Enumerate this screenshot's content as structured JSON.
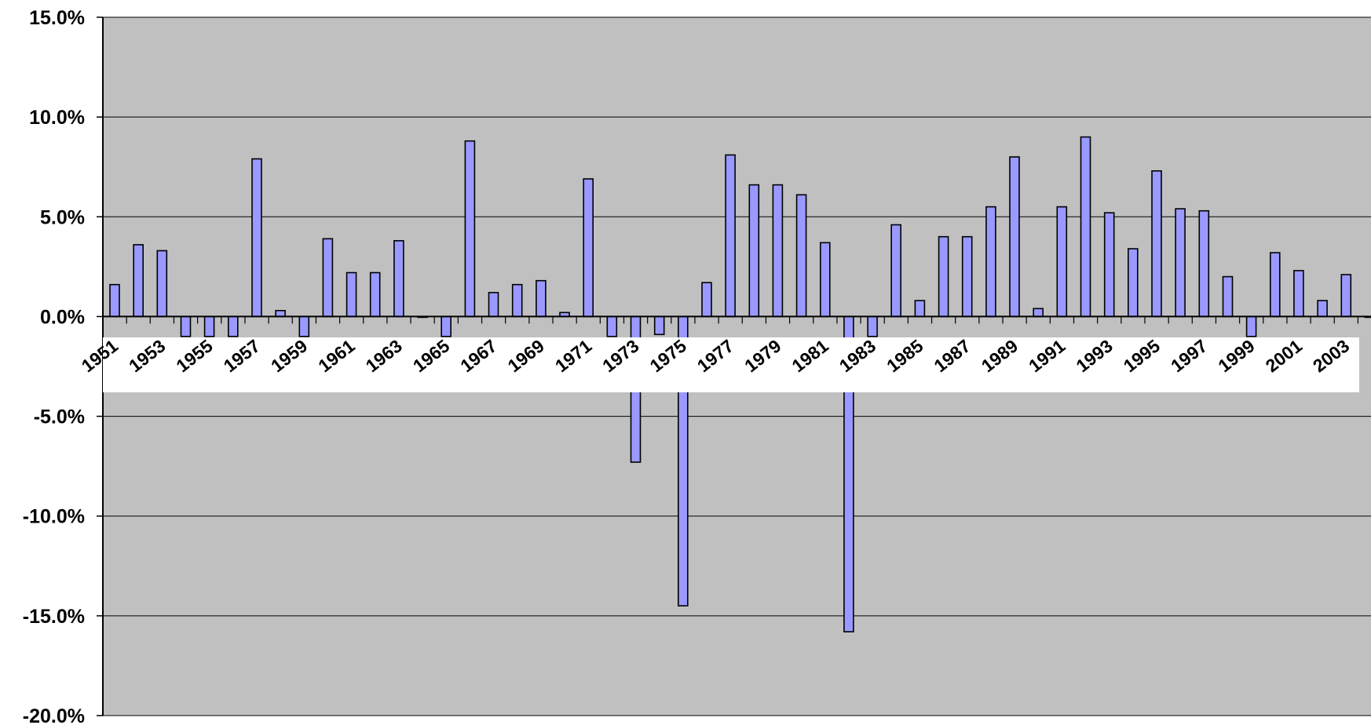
{
  "chart_data": {
    "type": "bar",
    "title": "",
    "xlabel": "",
    "ylabel": "",
    "ylim": [
      -0.2,
      0.15
    ],
    "y_ticks": [
      0.15,
      0.1,
      0.05,
      0.0,
      -0.05,
      -0.1,
      -0.15,
      -0.2
    ],
    "y_tick_labels": [
      "15.0%",
      "10.0%",
      "5.0%",
      "0.0%",
      "-5.0%",
      "-10.0%",
      "-15.0%",
      "-20.0%"
    ],
    "x_tick_labels": [
      "1951",
      "1953",
      "1955",
      "1957",
      "1959",
      "1961",
      "1963",
      "1965",
      "1967",
      "1969",
      "1971",
      "1973",
      "1975",
      "1977",
      "1979",
      "1981",
      "1983",
      "1985",
      "1987",
      "1989",
      "1991",
      "1993",
      "1995",
      "1997",
      "1999",
      "2001",
      "2003"
    ],
    "grid": true,
    "categories": [
      "1951",
      "1952",
      "1953",
      "1954",
      "1955",
      "1956",
      "1957",
      "1958",
      "1959",
      "1960",
      "1961",
      "1962",
      "1963",
      "1964",
      "1965",
      "1966",
      "1967",
      "1968",
      "1969",
      "1970",
      "1971",
      "1972",
      "1973",
      "1974",
      "1975",
      "1976",
      "1977",
      "1978",
      "1979",
      "1980",
      "1981",
      "1982",
      "1983",
      "1984",
      "1985",
      "1986",
      "1987",
      "1988",
      "1989",
      "1990",
      "1991",
      "1992",
      "1993",
      "1994",
      "1995",
      "1996",
      "1997",
      "1998",
      "1999",
      "2000",
      "2001",
      "2002",
      "2003",
      "2004"
    ],
    "values": [
      0.016,
      0.036,
      0.033,
      -0.01,
      -0.01,
      -0.01,
      0.079,
      0.003,
      -0.01,
      0.039,
      0.022,
      0.022,
      0.038,
      0.0,
      -0.01,
      0.088,
      0.012,
      0.016,
      0.018,
      0.002,
      0.069,
      -0.01,
      -0.073,
      -0.009,
      -0.145,
      0.017,
      0.081,
      0.066,
      0.066,
      0.061,
      0.037,
      -0.158,
      -0.01,
      0.046,
      0.008,
      0.04,
      0.04,
      0.055,
      0.08,
      0.004,
      0.055,
      0.09,
      0.052,
      0.034,
      0.073,
      0.054,
      0.053,
      0.02,
      -0.01,
      0.032,
      0.023,
      0.008,
      0.021,
      0.0
    ],
    "colors": {
      "plot_bg": "#c0c0c0",
      "bar_fill": "#9999ff",
      "bar_stroke": "#000000",
      "grid": "#000000",
      "label_band": "#ffffff"
    }
  }
}
